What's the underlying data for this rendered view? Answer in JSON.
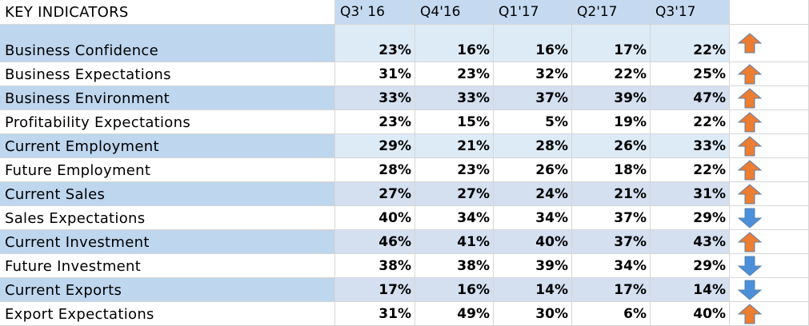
{
  "table": {
    "header": {
      "title": "KEY INDICATORS",
      "columns": [
        "Q3' 16",
        "Q4'16",
        "Q1'17",
        "Q2'17",
        "Q3'17"
      ]
    },
    "rows": [
      {
        "label": "Business Confidence",
        "values": [
          "23%",
          "16%",
          "16%",
          "17%",
          "22%"
        ],
        "trend": "up",
        "trend_color": "#ed7d31"
      },
      {
        "label": "Business Expectations",
        "values": [
          "31%",
          "23%",
          "32%",
          "22%",
          "25%"
        ],
        "trend": "up",
        "trend_color": "#ed7d31"
      },
      {
        "label": "Business Environment",
        "values": [
          "33%",
          "33%",
          "37%",
          "39%",
          "47%"
        ],
        "trend": "up",
        "trend_color": "#ed7d31"
      },
      {
        "label": "Profitability Expectations",
        "values": [
          "23%",
          "15%",
          "5%",
          "19%",
          "22%"
        ],
        "trend": "up",
        "trend_color": "#ed7d31"
      },
      {
        "label": "Current Employment",
        "values": [
          "29%",
          "21%",
          "28%",
          "26%",
          "33%"
        ],
        "trend": "up",
        "trend_color": "#ed7d31"
      },
      {
        "label": "Future Employment",
        "values": [
          "28%",
          "23%",
          "26%",
          "18%",
          "22%"
        ],
        "trend": "up",
        "trend_color": "#ed7d31"
      },
      {
        "label": "Current Sales",
        "values": [
          "27%",
          "27%",
          "24%",
          "21%",
          "31%"
        ],
        "trend": "up",
        "trend_color": "#ed7d31"
      },
      {
        "label": "Sales Expectations",
        "values": [
          "40%",
          "34%",
          "34%",
          "37%",
          "29%"
        ],
        "trend": "down",
        "trend_color": "#4a90d9"
      },
      {
        "label": "Current Investment",
        "values": [
          "46%",
          "41%",
          "40%",
          "37%",
          "43%"
        ],
        "trend": "up",
        "trend_color": "#ed7d31"
      },
      {
        "label": "Future Investment",
        "values": [
          "38%",
          "38%",
          "39%",
          "34%",
          "29%"
        ],
        "trend": "down",
        "trend_color": "#4a90d9"
      },
      {
        "label": "Current Exports",
        "values": [
          "17%",
          "16%",
          "14%",
          "17%",
          "14%"
        ],
        "trend": "down",
        "trend_color": "#4a90d9"
      },
      {
        "label": "Export Expectations",
        "values": [
          "31%",
          "49%",
          "30%",
          "6%",
          "40%"
        ],
        "trend": "up",
        "trend_color": "#ed7d31"
      }
    ]
  }
}
